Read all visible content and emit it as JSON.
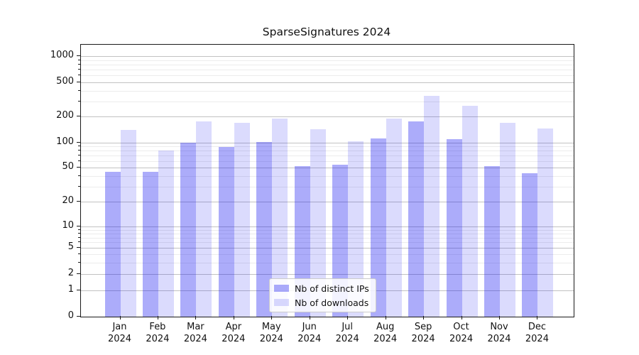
{
  "chart_data": {
    "type": "bar",
    "title": "SparseSignatures 2024",
    "categories": [
      "Jan",
      "Feb",
      "Mar",
      "Apr",
      "May",
      "Jun",
      "Jul",
      "Aug",
      "Sep",
      "Oct",
      "Nov",
      "Dec"
    ],
    "category_year": "2024",
    "series": [
      {
        "name": "Nb of distinct IPs",
        "color": "#a8a8fa",
        "fill": "rgba(13,13,240,0.34)",
        "values": [
          45,
          45,
          100,
          88,
          102,
          52,
          54,
          113,
          176,
          110,
          52,
          43
        ]
      },
      {
        "name": "Nb of downloads",
        "color": "#d9d9fd",
        "fill": "rgba(13,13,240,0.15)",
        "values": [
          140,
          80,
          175,
          170,
          190,
          143,
          104,
          190,
          348,
          269,
          171,
          145
        ]
      }
    ],
    "yscale": "symlog",
    "y_ticks": [
      0,
      1,
      2,
      5,
      10,
      20,
      50,
      100,
      200,
      500,
      1000
    ],
    "y_minor_ticks": [
      3,
      4,
      6,
      7,
      8,
      9,
      30,
      40,
      60,
      70,
      80,
      90,
      300,
      400,
      600,
      700,
      800,
      900
    ],
    "ylim": [
      0,
      1360
    ],
    "grid": true,
    "legend_position": "lower center",
    "grid_major_color": "#c2c2c2",
    "grid_minor_color": "#ececec"
  }
}
